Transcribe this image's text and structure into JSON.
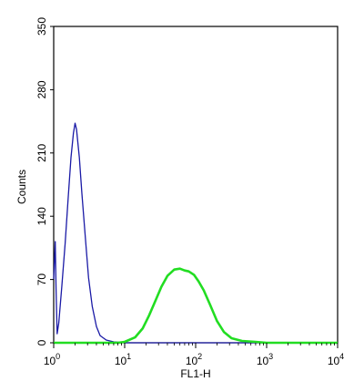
{
  "chart_data": {
    "type": "line",
    "title": "",
    "xlabel": "FL1-H",
    "ylabel": "Counts",
    "x_scale": "log",
    "xlim": [
      1,
      10000
    ],
    "ylim": [
      0,
      350
    ],
    "grid": false,
    "legend": "none",
    "x_ticks": [
      {
        "value": 1,
        "base": "10",
        "exp": "0"
      },
      {
        "value": 10,
        "base": "10",
        "exp": "1"
      },
      {
        "value": 100,
        "base": "10",
        "exp": "2"
      },
      {
        "value": 1000,
        "base": "10",
        "exp": "3"
      },
      {
        "value": 10000,
        "base": "10",
        "exp": "4"
      }
    ],
    "y_ticks": [
      0,
      70,
      140,
      210,
      280,
      350
    ],
    "series": [
      {
        "color": "#1a1aa6",
        "points": [
          [
            1.0,
            70
          ],
          [
            1.05,
            112
          ],
          [
            1.08,
            60
          ],
          [
            1.12,
            10
          ],
          [
            1.18,
            22
          ],
          [
            1.3,
            62
          ],
          [
            1.45,
            110
          ],
          [
            1.6,
            160
          ],
          [
            1.75,
            205
          ],
          [
            1.9,
            232
          ],
          [
            2.0,
            243
          ],
          [
            2.1,
            236
          ],
          [
            2.3,
            205
          ],
          [
            2.5,
            165
          ],
          [
            2.8,
            115
          ],
          [
            3.1,
            72
          ],
          [
            3.5,
            40
          ],
          [
            4.0,
            18
          ],
          [
            4.5,
            8
          ],
          [
            5.5,
            3
          ],
          [
            7.0,
            1
          ],
          [
            10,
            0
          ],
          [
            100,
            0
          ],
          [
            1000,
            0
          ],
          [
            10000,
            0
          ]
        ]
      },
      {
        "color": "#22dd22",
        "points": [
          [
            1,
            0
          ],
          [
            8,
            0
          ],
          [
            10,
            1
          ],
          [
            14,
            6
          ],
          [
            18,
            16
          ],
          [
            22,
            30
          ],
          [
            27,
            46
          ],
          [
            33,
            62
          ],
          [
            40,
            74
          ],
          [
            50,
            81
          ],
          [
            60,
            82
          ],
          [
            70,
            80
          ],
          [
            80,
            79
          ],
          [
            95,
            75
          ],
          [
            110,
            68
          ],
          [
            130,
            58
          ],
          [
            160,
            42
          ],
          [
            200,
            24
          ],
          [
            250,
            12
          ],
          [
            320,
            5
          ],
          [
            450,
            2
          ],
          [
            700,
            1
          ],
          [
            1000,
            0
          ],
          [
            10000,
            0
          ]
        ]
      }
    ]
  }
}
